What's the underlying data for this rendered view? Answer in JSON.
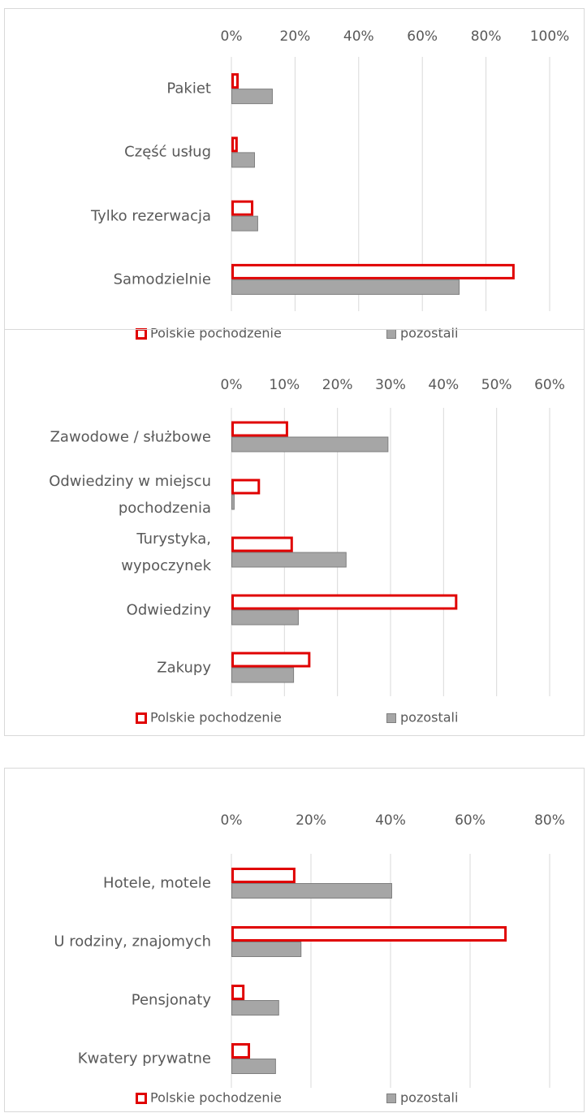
{
  "chart_data": [
    {
      "type": "bar",
      "orientation": "horizontal",
      "categories": [
        "Pakiet",
        "Część usług",
        "Tylko rezerwacja",
        "Samodzielnie"
      ],
      "series": [
        {
          "name": "Polskie pochodzenie",
          "color": "#e00000",
          "outline": true,
          "values": [
            2.3,
            2,
            6.9,
            89
          ]
        },
        {
          "name": "pozostali",
          "color": "#a6a6a6",
          "outline": false,
          "values": [
            13,
            7.4,
            8.4,
            71.7
          ]
        }
      ],
      "xlim": [
        0,
        100
      ],
      "xticks": [
        {
          "value": 0,
          "label": "0%"
        },
        {
          "value": 20,
          "label": "20%"
        },
        {
          "value": 40,
          "label": "40%"
        },
        {
          "value": 60,
          "label": "60%"
        },
        {
          "value": 80,
          "label": "80%"
        },
        {
          "value": 100,
          "label": "100%"
        }
      ],
      "grid": true,
      "legend": "bottom"
    },
    {
      "type": "bar",
      "orientation": "horizontal",
      "categories": [
        "Zawodowe / służbowe",
        "Odwiedziny w miejscu\npochodzenia",
        "Turystyka,\nwypoczynek",
        "Odwiedziny",
        "Zakupy"
      ],
      "series": [
        {
          "name": "Polskie pochodzenie",
          "color": "#e00000",
          "outline": true,
          "values": [
            10.7,
            5.4,
            11.6,
            42.6,
            14.9
          ]
        },
        {
          "name": "pozostali",
          "color": "#a6a6a6",
          "outline": false,
          "values": [
            29.6,
            0.6,
            21.7,
            12.7,
            11.8
          ]
        }
      ],
      "xlim": [
        0,
        60
      ],
      "xticks": [
        {
          "value": 0,
          "label": "0%"
        },
        {
          "value": 10,
          "label": "10%"
        },
        {
          "value": 20,
          "label": "20%"
        },
        {
          "value": 30,
          "label": "30%"
        },
        {
          "value": 40,
          "label": "40%"
        },
        {
          "value": 50,
          "label": "50%"
        },
        {
          "value": 60,
          "label": "60%"
        }
      ],
      "grid": true,
      "legend": "bottom"
    },
    {
      "type": "bar",
      "orientation": "horizontal",
      "categories": [
        "Hotele, motele",
        "U rodziny, znajomych",
        "Pensjonaty",
        "Kwatery prywatne"
      ],
      "series": [
        {
          "name": "Polskie pochodzenie",
          "color": "#e00000",
          "outline": true,
          "values": [
            16.1,
            69.2,
            3.3,
            4.7
          ]
        },
        {
          "name": "pozostali",
          "color": "#a6a6a6",
          "outline": false,
          "values": [
            40.4,
            17.6,
            12,
            11.2
          ]
        }
      ],
      "xlim": [
        0,
        80
      ],
      "xticks": [
        {
          "value": 0,
          "label": "0%"
        },
        {
          "value": 20,
          "label": "20%"
        },
        {
          "value": 40,
          "label": "40%"
        },
        {
          "value": 60,
          "label": "60%"
        },
        {
          "value": 80,
          "label": "80%"
        }
      ],
      "grid": true,
      "legend": "bottom"
    }
  ]
}
